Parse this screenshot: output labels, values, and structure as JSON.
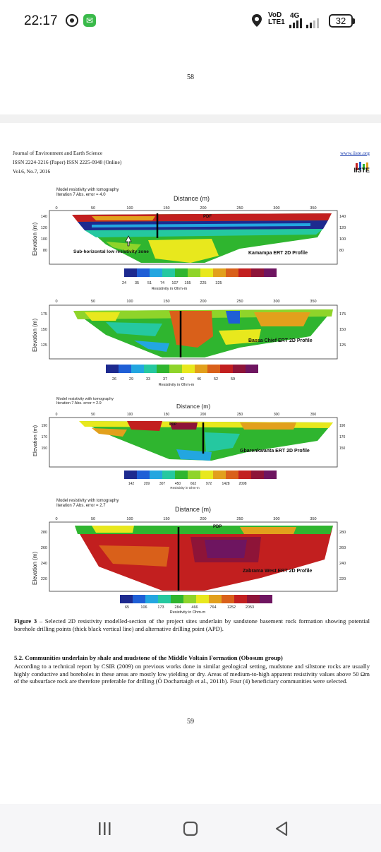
{
  "status_bar": {
    "time": "22:17",
    "operator": "VoD LTE1",
    "network": "4G",
    "battery": "32"
  },
  "page_top": {
    "page_number": "58"
  },
  "journal": {
    "name": "Journal of Environment and Earth Science",
    "issn": "ISSN 2224-3216 (Paper) ISSN 2225-0948 (Online)",
    "volume": "Vol.6, No.7, 2016",
    "url": "www.iiste.org",
    "logo": "IISTE"
  },
  "figure": {
    "panels": [
      {
        "header1": "Model resistivity with tomography",
        "header2": "Iteration 7 Abs. error = 4.0",
        "distance_title": "Distance (m)",
        "x_ticks": [
          "0",
          "50",
          "100",
          "150",
          "200",
          "250",
          "300",
          "350"
        ],
        "y_ticks": [
          "140",
          "120",
          "100",
          "80"
        ],
        "y_label": "Elevation (m)",
        "profile_label": "Kamampa ERT 2D Profile",
        "annotation": "Sub-horizontal low resistivity zone",
        "marker": "PDF",
        "scale_values": [
          "24",
          "35",
          "51",
          "74",
          "107",
          "155",
          "225",
          "325"
        ],
        "scale_title": "Resistivity in Ohm-m"
      },
      {
        "x_ticks": [
          "0",
          "50",
          "100",
          "150",
          "200",
          "250",
          "300",
          "350"
        ],
        "y_ticks": [
          "175",
          "150",
          "125"
        ],
        "y_label": "Elevation (m)",
        "profile_label": "Bassa Chief ERT 2D Profile",
        "scale_values": [
          "26",
          "29",
          "33",
          "37",
          "42",
          "46",
          "52",
          "59"
        ],
        "scale_title": "Resistivity in Ohm-m"
      },
      {
        "header1": "Model resistivity with tomography",
        "header2": "Iteration 7 Abs. error = 2.9",
        "distance_title": "Distance (m)",
        "x_ticks": [
          "0",
          "50",
          "100",
          "150",
          "200",
          "250",
          "300",
          "350"
        ],
        "y_ticks": [
          "190",
          "170",
          "150"
        ],
        "y_label": "Elevation (m)",
        "profile_label": "Gbarenkwanta ERT 2D Profile",
        "marker": "PDP",
        "scale_values": [
          "142",
          "209",
          "307",
          "450",
          "662",
          "972",
          "1428",
          "2098"
        ],
        "scale_title": "Resistivity in Ohm-m"
      },
      {
        "header1": "Model resistivity with tomography",
        "header2": "Iteration 7 Abs. error = 2.7",
        "distance_title": "Distance (m)",
        "x_ticks": [
          "0",
          "50",
          "100",
          "150",
          "200",
          "250",
          "300",
          "350"
        ],
        "y_ticks": [
          "280",
          "260",
          "240",
          "220"
        ],
        "y_label": "Elevation (m)",
        "profile_label": "Zabrama West ERT 2D Profile",
        "marker": "PDP",
        "scale_values": [
          "65",
          "106",
          "173",
          "284",
          "466",
          "764",
          "1252",
          "2053"
        ],
        "scale_title": "Resistivity in Ohm-m"
      }
    ],
    "scale_colors": [
      "#1d2a8f",
      "#1f5fd6",
      "#23a6e0",
      "#25c8a0",
      "#2fb52f",
      "#8fd42a",
      "#e8e81d",
      "#e2a01c",
      "#d9601a",
      "#c21f1f",
      "#8e1438",
      "#6e1560"
    ]
  },
  "caption": {
    "label": "Figure 3",
    "text": " – Selected 2D resistivity modelled-section of the project sites underlain by sandstone basement rock formation showing potential borehole drilling points (thick black vertical line) and alternative drilling point (APD)."
  },
  "section": {
    "title": "5.2. Communities underlain by shale and mudstone of the Middle Voltain Formation (Obosum group)",
    "paragraph": "According to a technical report by CSIR (2009) on previous works done in similar geological setting, mudstone and siltstone rocks are usually highly conductive and boreholes in these areas are mostly low yielding or dry. Areas of medium-to-high apparent resistivity values above 50 Ωm of the subsurface rock are therefore preferable for drilling (Ó Dochartaigh et al., 2011b). Four (4) beneficiary communities were selected."
  },
  "page_bottom": {
    "page_number": "59"
  },
  "navbar": {
    "recent": "recent-apps",
    "home": "home",
    "back": "back"
  }
}
